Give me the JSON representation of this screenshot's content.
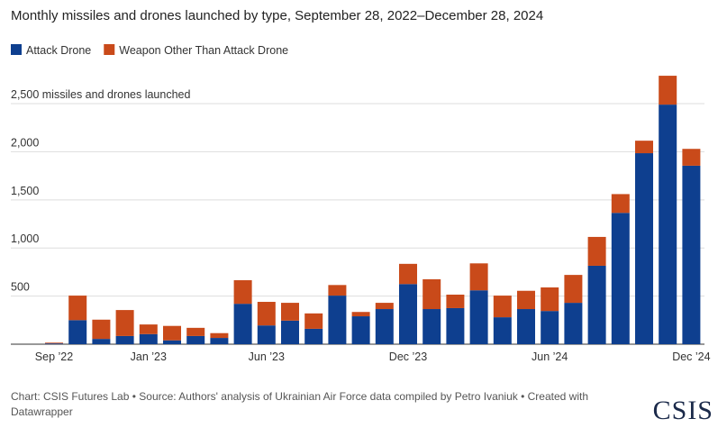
{
  "chart_data": {
    "type": "stacked_bar",
    "title": "Monthly missiles and drones launched by type, September 28, 2022–December 28, 2024",
    "categories": [
      "Sep ’22",
      null,
      null,
      null,
      "Jan ’23",
      null,
      null,
      null,
      null,
      "Jun ’23",
      null,
      null,
      null,
      null,
      null,
      "Dec ’23",
      null,
      null,
      null,
      null,
      null,
      "Jun ’24",
      null,
      null,
      null,
      null,
      null,
      "Dec ’24"
    ],
    "series": [
      {
        "name": "Attack Drone",
        "color": "#0e3f8f",
        "values": [
          8,
          250,
          55,
          85,
          105,
          40,
          85,
          65,
          420,
          195,
          245,
          160,
          505,
          290,
          365,
          625,
          365,
          375,
          560,
          280,
          365,
          345,
          430,
          815,
          1365,
          1985,
          2490,
          1855
        ]
      },
      {
        "name": "Weapon Other Than Attack Drone",
        "color": "#c94a1a",
        "values": [
          8,
          255,
          200,
          270,
          100,
          150,
          85,
          50,
          245,
          245,
          185,
          160,
          110,
          45,
          65,
          210,
          310,
          140,
          280,
          225,
          190,
          245,
          290,
          300,
          195,
          130,
          300,
          175
        ]
      }
    ],
    "ylim": [
      0,
      2800
    ],
    "yticks": [
      500,
      {
        "value": 1000,
        "label": "1,000"
      },
      {
        "value": 1500,
        "label": "1,500"
      },
      {
        "value": 2000,
        "label": "2,000"
      },
      {
        "value": 2500,
        "label": "2,500 missiles and drones launched"
      }
    ],
    "grid": true,
    "source": "Chart: CSIS Futures Lab • Source: Authors' analysis of Ukrainian Air Force data compiled by Petro Ivaniuk • Created with Datawrapper",
    "logo": "CSIS"
  }
}
